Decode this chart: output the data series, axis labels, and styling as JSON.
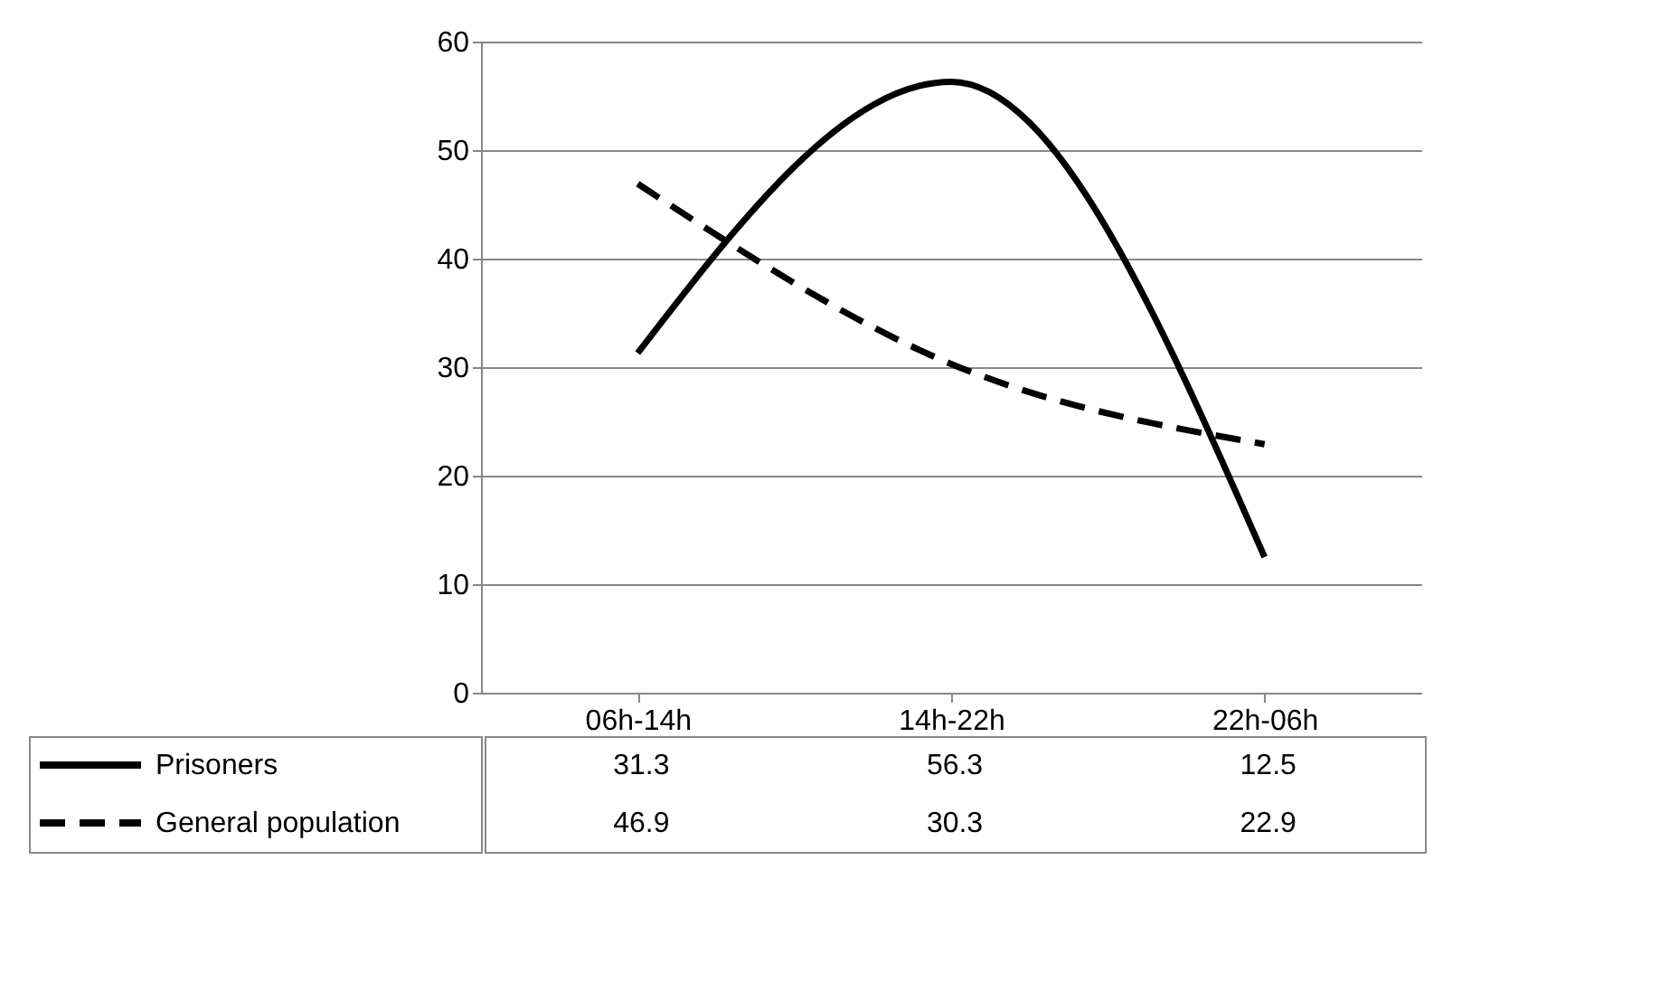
{
  "chart_data": {
    "type": "line",
    "categories": [
      "06h-14h",
      "14h-22h",
      "22h-06h"
    ],
    "series": [
      {
        "name": "Prisoners",
        "color": "#000000",
        "line_style": "solid",
        "values": [
          31.3,
          56.3,
          12.5
        ]
      },
      {
        "name": "General population",
        "color": "#000000",
        "line_style": "dashed",
        "values": [
          46.9,
          30.3,
          22.9
        ]
      }
    ],
    "ylim": [
      0,
      60
    ],
    "yticks": [
      0,
      10,
      20,
      30,
      40,
      50,
      60
    ],
    "grid": "y",
    "legend": "bottom left",
    "data_labels": true
  }
}
